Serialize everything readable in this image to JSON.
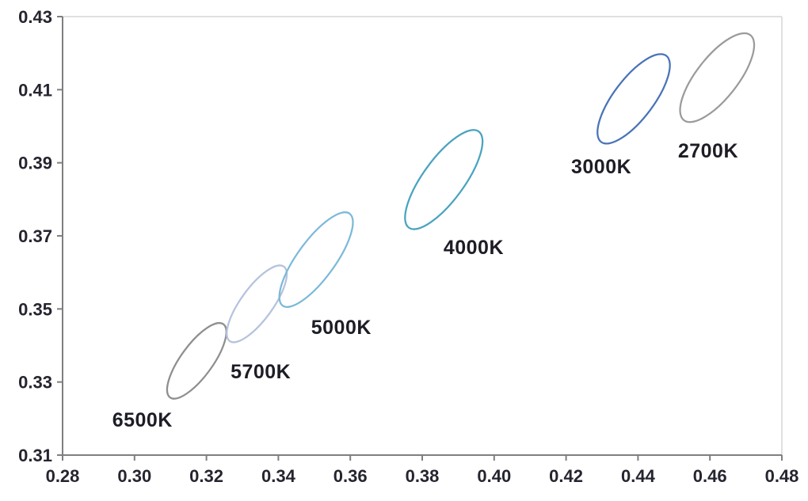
{
  "chart_data": {
    "type": "scatter",
    "subtype": "chromaticity-ellipses",
    "title": "",
    "xlabel": "",
    "ylabel": "",
    "xlim": [
      0.28,
      0.48
    ],
    "ylim": [
      0.31,
      0.43
    ],
    "x_tick_step": 0.02,
    "y_tick_step": 0.02,
    "x_tick_labels": [
      "0.28",
      "0.30",
      "0.32",
      "0.34",
      "0.36",
      "0.38",
      "0.40",
      "0.42",
      "0.44",
      "0.46",
      "0.48"
    ],
    "y_tick_labels": [
      "0.31",
      "0.33",
      "0.35",
      "0.37",
      "0.39",
      "0.41",
      "0.43"
    ],
    "grid": "off",
    "legend": "none",
    "series": [
      {
        "name": "6500K",
        "shape": "ellipse",
        "center": {
          "x": 0.3173,
          "y": 0.3358
        },
        "semi_major": 0.0125,
        "semi_minor": 0.0044,
        "tilt_deg": 54,
        "color": "#8f8f8f",
        "label": "6500K",
        "label_pos": {
          "x": 0.3022,
          "y": 0.3197
        }
      },
      {
        "name": "5700K",
        "shape": "ellipse",
        "center": {
          "x": 0.334,
          "y": 0.3514
        },
        "semi_major": 0.0127,
        "semi_minor": 0.0044,
        "tilt_deg": 54,
        "color": "#b6c2de",
        "label": "5700K",
        "label_pos": {
          "x": 0.3351,
          "y": 0.333
        }
      },
      {
        "name": "5000K",
        "shape": "ellipse",
        "center": {
          "x": 0.3505,
          "y": 0.3635
        },
        "semi_major": 0.0157,
        "semi_minor": 0.0052,
        "tilt_deg": 54,
        "color": "#7cb9d9",
        "label": "5000K",
        "label_pos": {
          "x": 0.3575,
          "y": 0.3451
        }
      },
      {
        "name": "4000K",
        "shape": "ellipse",
        "center": {
          "x": 0.386,
          "y": 0.3854
        },
        "semi_major": 0.0164,
        "semi_minor": 0.0057,
        "tilt_deg": 54,
        "color": "#4aa3c0",
        "label": "4000K",
        "label_pos": {
          "x": 0.3943,
          "y": 0.367
        }
      },
      {
        "name": "3000K",
        "shape": "ellipse",
        "center": {
          "x": 0.4388,
          "y": 0.4075
        },
        "semi_major": 0.0149,
        "semi_minor": 0.0055,
        "tilt_deg": 53,
        "color": "#4973b8",
        "label": "3000K",
        "label_pos": {
          "x": 0.4298,
          "y": 0.3891
        }
      },
      {
        "name": "2700K",
        "shape": "ellipse",
        "center": {
          "x": 0.462,
          "y": 0.4133
        },
        "semi_major": 0.0149,
        "semi_minor": 0.0057,
        "tilt_deg": 52,
        "color": "#9b9b9b",
        "label": "2700K",
        "label_pos": {
          "x": 0.4595,
          "y": 0.3934
        }
      }
    ],
    "style": {
      "background_color": "#ffffff",
      "axis_color": "#7f7f7f",
      "plot_border_color": "#d6d6d6",
      "tick_label_color": "#25252f",
      "series_label_color": "#1d1d26",
      "ellipse_stroke_width": 2.25
    }
  }
}
